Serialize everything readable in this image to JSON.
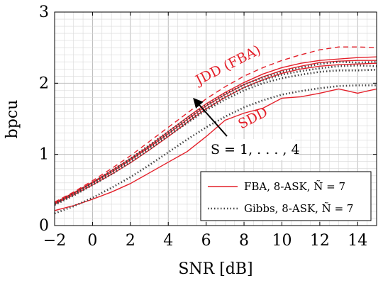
{
  "chart_data": {
    "type": "line",
    "xlabel": "SNR [dB]",
    "ylabel": "bpcu",
    "xlim": [
      -2,
      15
    ],
    "ylim": [
      0,
      3
    ],
    "xticks": [
      -2,
      0,
      2,
      4,
      6,
      8,
      10,
      12,
      14
    ],
    "yticks": [
      0,
      1,
      2,
      3
    ],
    "grid": "major and minor",
    "legend_position": "bottom-right",
    "legend": [
      {
        "label": "FBA, 8-ASK, Ñ = 7",
        "color": "#e4202a",
        "style": "solid"
      },
      {
        "label": "Gibbs, 8-ASK, Ñ = 7",
        "color": "#404040",
        "style": "dotted"
      }
    ],
    "annotations": {
      "jdd": "JDD (FBA)",
      "sdd": "SDD",
      "s_range": "S = 1, . . . , 4"
    },
    "series": [
      {
        "name": "JDD (FBA)",
        "method": "FBA",
        "style": "dashed",
        "color": "#e4202a",
        "x": [
          -2,
          -1,
          0,
          1,
          2,
          3,
          4,
          5,
          6,
          7,
          8,
          9,
          10,
          11,
          12,
          13,
          14,
          15
        ],
        "y": [
          0.33,
          0.47,
          0.63,
          0.8,
          0.98,
          1.18,
          1.38,
          1.58,
          1.78,
          1.95,
          2.1,
          2.22,
          2.32,
          2.4,
          2.47,
          2.51,
          2.51,
          2.5
        ]
      },
      {
        "name": "",
        "method": "FBA",
        "style": "solid",
        "color": "#e4202a",
        "x": [
          -2,
          -1,
          0,
          1,
          2,
          3,
          4,
          5,
          6,
          7,
          8,
          9,
          10,
          11,
          12,
          13,
          14,
          15
        ],
        "y": [
          0.32,
          0.46,
          0.61,
          0.77,
          0.94,
          1.12,
          1.32,
          1.52,
          1.71,
          1.87,
          2.01,
          2.13,
          2.22,
          2.28,
          2.32,
          2.34,
          2.36,
          2.37
        ]
      },
      {
        "name": "",
        "method": "FBA",
        "style": "solid",
        "color": "#e4202a",
        "x": [
          -2,
          -1,
          0,
          1,
          2,
          3,
          4,
          5,
          6,
          7,
          8,
          9,
          10,
          11,
          12,
          13,
          14,
          15
        ],
        "y": [
          0.31,
          0.45,
          0.6,
          0.75,
          0.92,
          1.1,
          1.29,
          1.49,
          1.68,
          1.84,
          1.98,
          2.09,
          2.18,
          2.24,
          2.29,
          2.31,
          2.32,
          2.32
        ]
      },
      {
        "name": "",
        "method": "FBA",
        "style": "solid",
        "color": "#e4202a",
        "x": [
          -2,
          -1,
          0,
          1,
          2,
          3,
          4,
          5,
          6,
          7,
          8,
          9,
          10,
          11,
          12,
          13,
          14,
          15
        ],
        "y": [
          0.3,
          0.43,
          0.57,
          0.72,
          0.88,
          1.06,
          1.25,
          1.45,
          1.64,
          1.8,
          1.94,
          2.05,
          2.14,
          2.2,
          2.24,
          2.26,
          2.27,
          2.28
        ]
      },
      {
        "name": "",
        "method": "FBA",
        "style": "solid",
        "color": "#e4202a",
        "x": [
          -2,
          -1,
          0,
          1,
          2,
          3,
          4,
          5,
          6,
          7,
          8,
          9,
          10,
          11,
          12,
          13,
          14,
          15
        ],
        "y": [
          0.21,
          0.28,
          0.37,
          0.47,
          0.59,
          0.74,
          0.89,
          1.04,
          1.25,
          1.48,
          1.58,
          1.65,
          1.79,
          1.81,
          1.86,
          1.92,
          1.86,
          1.92
        ]
      },
      {
        "name": "",
        "method": "Gibbs",
        "style": "dotted",
        "color": "#404040",
        "x": [
          -2,
          -1,
          0,
          1,
          2,
          3,
          4,
          5,
          6,
          7,
          8,
          9,
          10,
          11,
          12,
          13,
          14,
          15
        ],
        "y": [
          0.31,
          0.45,
          0.6,
          0.77,
          0.94,
          1.13,
          1.32,
          1.51,
          1.69,
          1.85,
          1.98,
          2.08,
          2.16,
          2.22,
          2.27,
          2.3,
          2.29,
          2.3
        ]
      },
      {
        "name": "",
        "method": "Gibbs",
        "style": "dotted",
        "color": "#404040",
        "x": [
          -2,
          -1,
          0,
          1,
          2,
          3,
          4,
          5,
          6,
          7,
          8,
          9,
          10,
          11,
          12,
          13,
          14,
          15
        ],
        "y": [
          0.3,
          0.44,
          0.59,
          0.75,
          0.92,
          1.1,
          1.29,
          1.47,
          1.65,
          1.81,
          1.94,
          2.04,
          2.12,
          2.17,
          2.21,
          2.24,
          2.25,
          2.24
        ]
      },
      {
        "name": "",
        "method": "Gibbs",
        "style": "dotted",
        "color": "#404040",
        "x": [
          -2,
          -1,
          0,
          1,
          2,
          3,
          4,
          5,
          6,
          7,
          8,
          9,
          10,
          11,
          12,
          13,
          14,
          15
        ],
        "y": [
          0.29,
          0.42,
          0.57,
          0.72,
          0.89,
          1.07,
          1.26,
          1.44,
          1.62,
          1.77,
          1.9,
          2.0,
          2.07,
          2.12,
          2.16,
          2.18,
          2.18,
          2.19
        ]
      },
      {
        "name": "",
        "method": "Gibbs",
        "style": "dotted",
        "color": "#404040",
        "x": [
          -2,
          -1,
          0,
          1,
          2,
          3,
          4,
          5,
          6,
          7,
          8,
          9,
          10,
          11,
          12,
          13,
          14,
          15
        ],
        "y": [
          0.17,
          0.27,
          0.39,
          0.53,
          0.68,
          0.85,
          1.03,
          1.21,
          1.38,
          1.53,
          1.66,
          1.76,
          1.84,
          1.89,
          1.93,
          1.96,
          1.97,
          1.97
        ]
      }
    ]
  }
}
